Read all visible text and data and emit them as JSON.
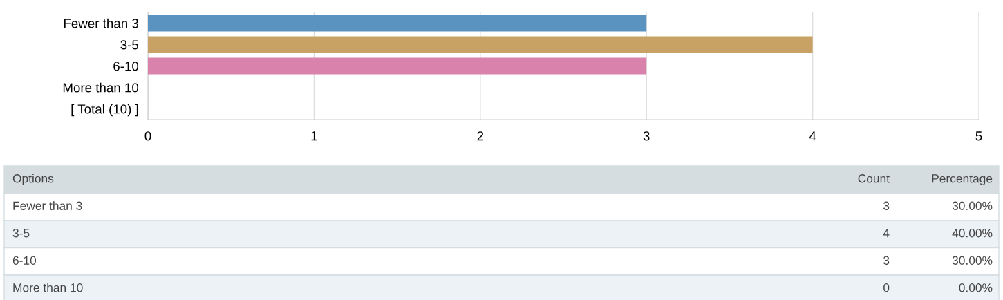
{
  "chart_data": {
    "type": "bar",
    "orientation": "horizontal",
    "categories": [
      "Fewer than 3",
      "3-5",
      "6-10",
      "More than 10",
      "[ Total (10) ]"
    ],
    "values": [
      3,
      4,
      3,
      0,
      null
    ],
    "colors": [
      "#5a93c0",
      "#c8a265",
      "#d983ac",
      "#d983ac",
      "#d983ac"
    ],
    "xlim": [
      0,
      5
    ],
    "xticks": [
      0,
      1,
      2,
      3,
      4,
      5
    ],
    "grid": "x",
    "annotations": [
      "Options",
      "Count",
      "Percentage",
      "3",
      "30.00%",
      "4",
      "40.00%",
      "3",
      "30.00%",
      "0",
      "0.00%"
    ]
  }
}
